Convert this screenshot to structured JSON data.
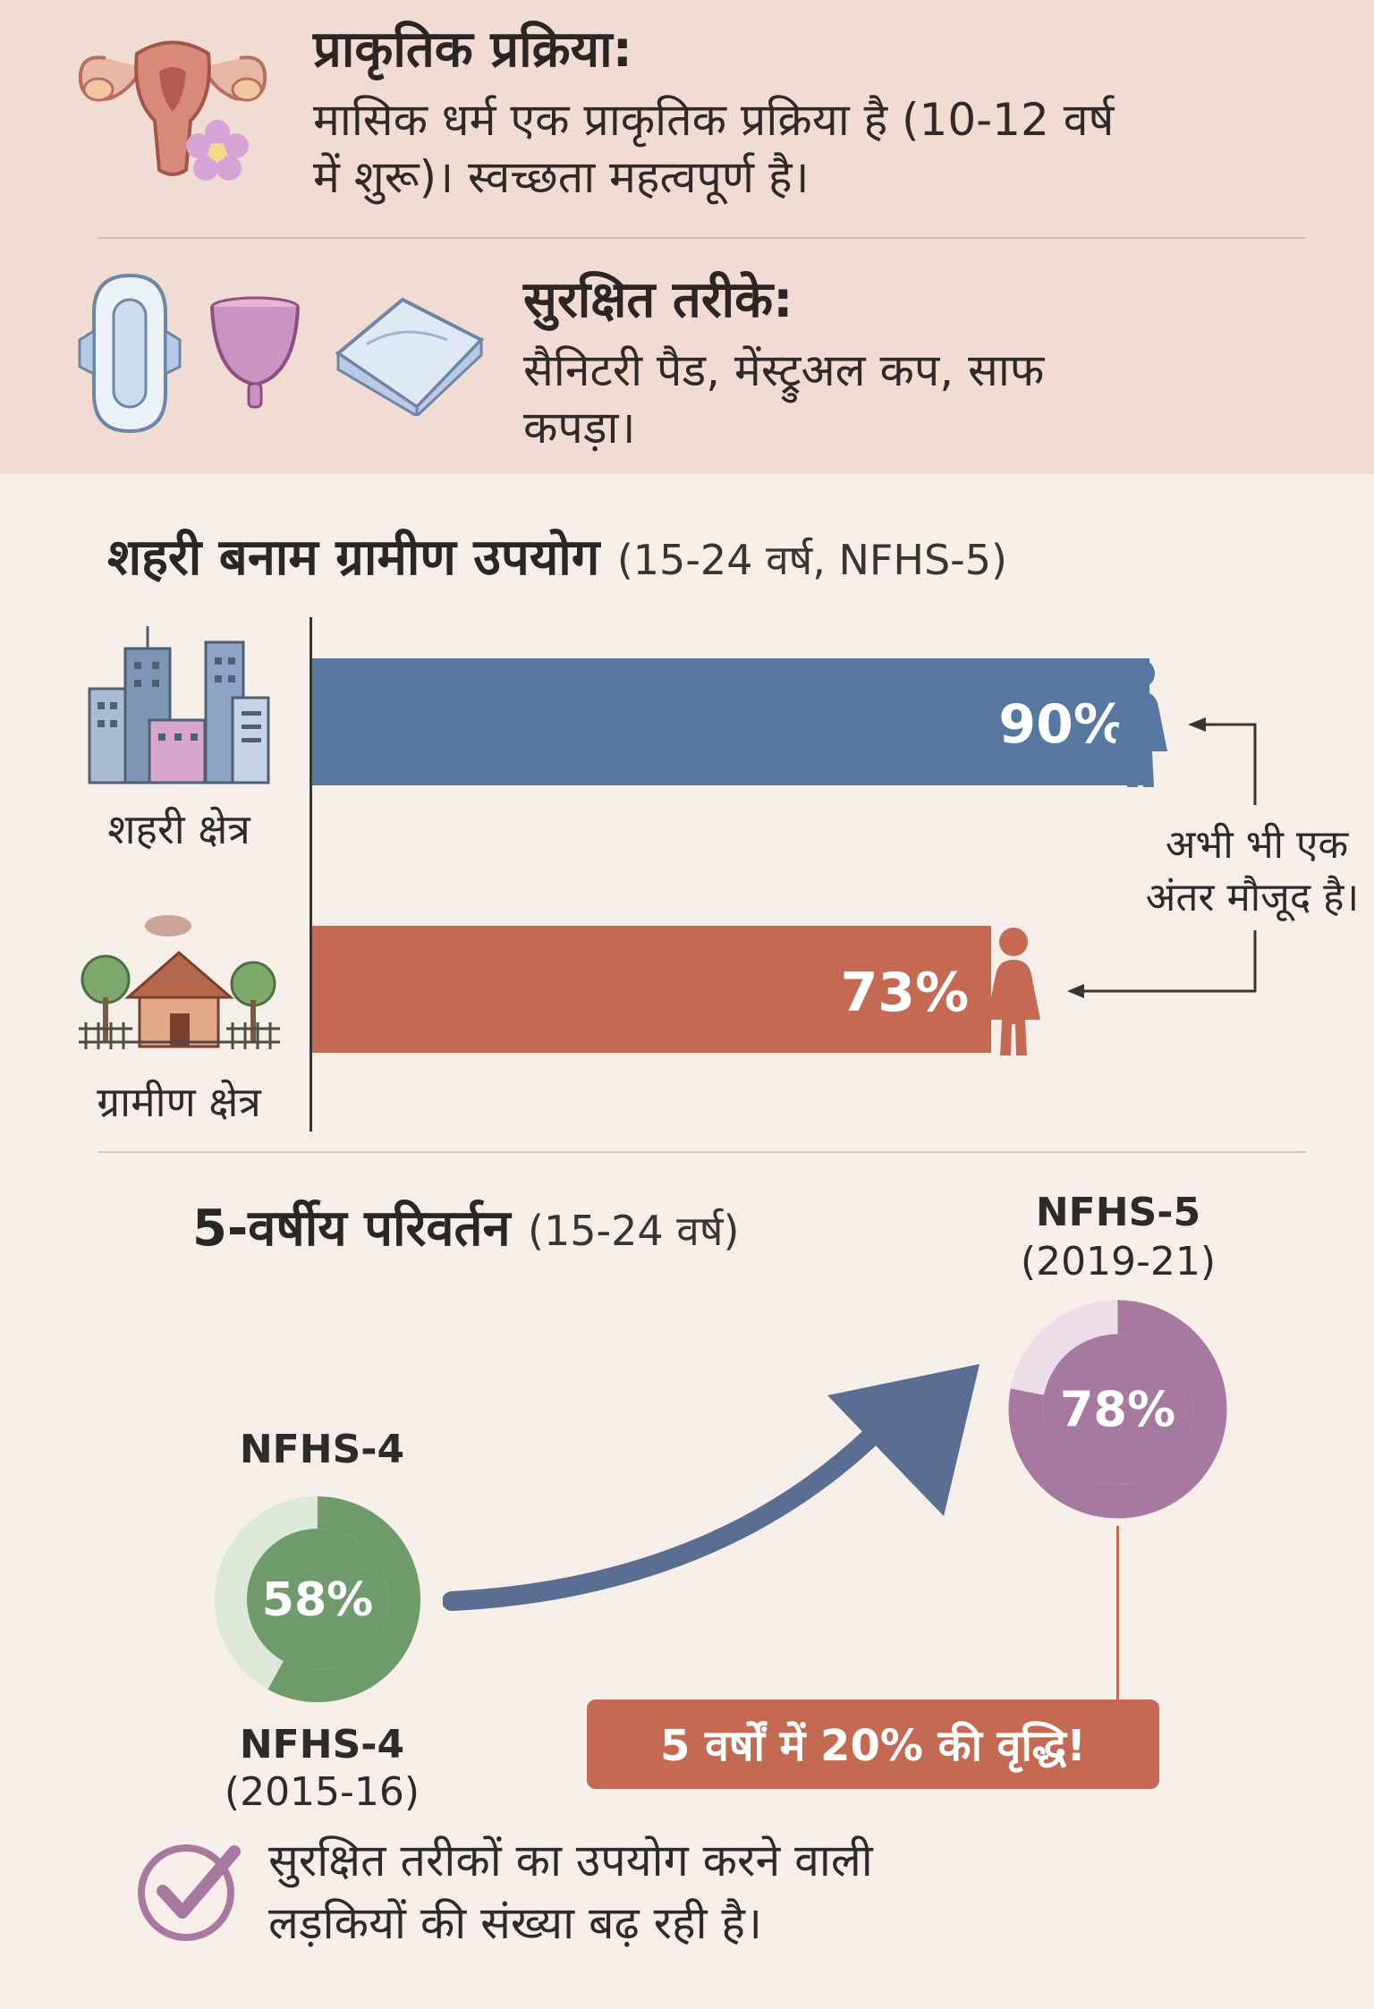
{
  "natural_process": {
    "title": "प्राकृतिक प्रक्रिया:",
    "text_line1": "मासिक धर्म एक प्राकृतिक प्रक्रिया है (10-12 वर्ष",
    "text_line2": "में शुरू)। स्वच्छता महत्वपूर्ण है।"
  },
  "safe_methods": {
    "title": "सुरक्षित तरीके:",
    "text_line1": "सैनिटरी पैड, मेंस्ट्रुअल कप, साफ",
    "text_line2": "कपड़ा।"
  },
  "urban_rural": {
    "title": "शहरी बनाम ग्रामीण उपयोग",
    "subtitle": "(15-24 वर्ष, NFHS-5)",
    "urban_label": "शहरी क्षेत्र",
    "rural_label": "ग्रामीण क्षेत्र",
    "gap_note_line1": "अभी भी एक",
    "gap_note_line2": "अंतर मौजूद है।"
  },
  "change": {
    "title": "5-वर्षीय परिवर्तन",
    "subtitle": "(15-24 वर्ष)",
    "nfhs4_top": "NFHS-4",
    "nfhs4_bottom": "NFHS-4",
    "nfhs4_years": "(2015-16)",
    "nfhs5_top": "NFHS-5",
    "nfhs5_years": "(2019-21)",
    "growth_banner": "5 वर्षों में 20% की वृद्धि!"
  },
  "conclusion": {
    "line1": "सुरक्षित तरीकों का उपयोग करने वाली",
    "line2": "लड़कियों की संख्या बढ़ रही है।"
  },
  "colors": {
    "urban": "#5577a0",
    "rural": "#c56a52",
    "nfhs4": "#6f9a6c",
    "nfhs5": "#a8799f"
  },
  "chart_data": [
    {
      "type": "bar",
      "orientation": "horizontal",
      "title": "शहरी बनाम ग्रामीण उपयोग (15-24 वर्ष, NFHS-5)",
      "categories": [
        "शहरी क्षेत्र",
        "ग्रामीण क्षेत्र"
      ],
      "values": [
        90,
        73
      ],
      "value_labels": [
        "90%",
        "73%"
      ],
      "xlim": [
        0,
        100
      ]
    },
    {
      "type": "pie",
      "title": "5-वर्षीय परिवर्तन (15-24 वर्ष)",
      "series": [
        {
          "name": "NFHS-4 (2015-16)",
          "value": 58,
          "label": "58%"
        },
        {
          "name": "NFHS-5 (2019-21)",
          "value": 78,
          "label": "78%"
        }
      ],
      "max": 100
    }
  ]
}
